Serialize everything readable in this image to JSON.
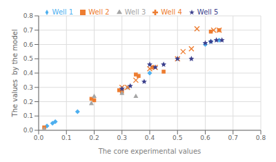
{
  "chart_data": {
    "type": "scatter",
    "xlabel": "The core experimental values",
    "ylabel": "The values  by the model",
    "xlim": [
      0.0,
      0.8
    ],
    "ylim": [
      0.0,
      0.8
    ],
    "xticks": [
      {
        "value": 0.0,
        "label": "0.0"
      },
      0.1,
      0.2,
      0.3,
      0.4,
      0.5,
      0.6,
      0.7,
      0.8
    ],
    "yticks": [
      {
        "value": 0.0,
        "label": "0.0"
      },
      0.1,
      0.2,
      0.3,
      0.4,
      0.5,
      0.6,
      0.7,
      0.8
    ],
    "grid": true,
    "legend": "top",
    "series": [
      {
        "name": "Well 1",
        "color": "#4DAFEF",
        "marker": "diamond",
        "x": [
          0.03,
          0.05,
          0.06,
          0.14,
          0.4,
          0.6,
          0.62,
          0.65
        ],
        "y": [
          0.03,
          0.05,
          0.06,
          0.13,
          0.4,
          0.6,
          0.62,
          0.63
        ]
      },
      {
        "name": "Well 2",
        "color": "#ED7D31",
        "marker": "square",
        "x": [
          0.02,
          0.19,
          0.2,
          0.29,
          0.3,
          0.35,
          0.36,
          0.41,
          0.45,
          0.62,
          0.65
        ],
        "y": [
          0.02,
          0.22,
          0.21,
          0.28,
          0.27,
          0.39,
          0.38,
          0.44,
          0.41,
          0.69,
          0.7
        ]
      },
      {
        "name": "Well 3",
        "color": "#A5A5A5",
        "marker": "triangle",
        "x": [
          0.02,
          0.19,
          0.2,
          0.3,
          0.32,
          0.35
        ],
        "y": [
          0.01,
          0.19,
          0.24,
          0.26,
          0.3,
          0.24
        ]
      },
      {
        "name": "Well 4",
        "color": "#ED7D31",
        "marker": "x",
        "x": [
          0.3,
          0.32,
          0.35,
          0.4,
          0.42,
          0.5,
          0.52,
          0.55,
          0.57,
          0.63,
          0.65
        ],
        "y": [
          0.3,
          0.3,
          0.35,
          0.43,
          0.44,
          0.5,
          0.55,
          0.57,
          0.71,
          0.7,
          0.7
        ]
      },
      {
        "name": "Well 5",
        "color": "#3B3F8C",
        "marker": "star",
        "x": [
          0.3,
          0.33,
          0.38,
          0.4,
          0.42,
          0.45,
          0.5,
          0.55,
          0.6,
          0.62,
          0.64,
          0.66
        ],
        "y": [
          0.29,
          0.31,
          0.34,
          0.46,
          0.44,
          0.46,
          0.5,
          0.5,
          0.61,
          0.62,
          0.63,
          0.63
        ]
      }
    ]
  }
}
